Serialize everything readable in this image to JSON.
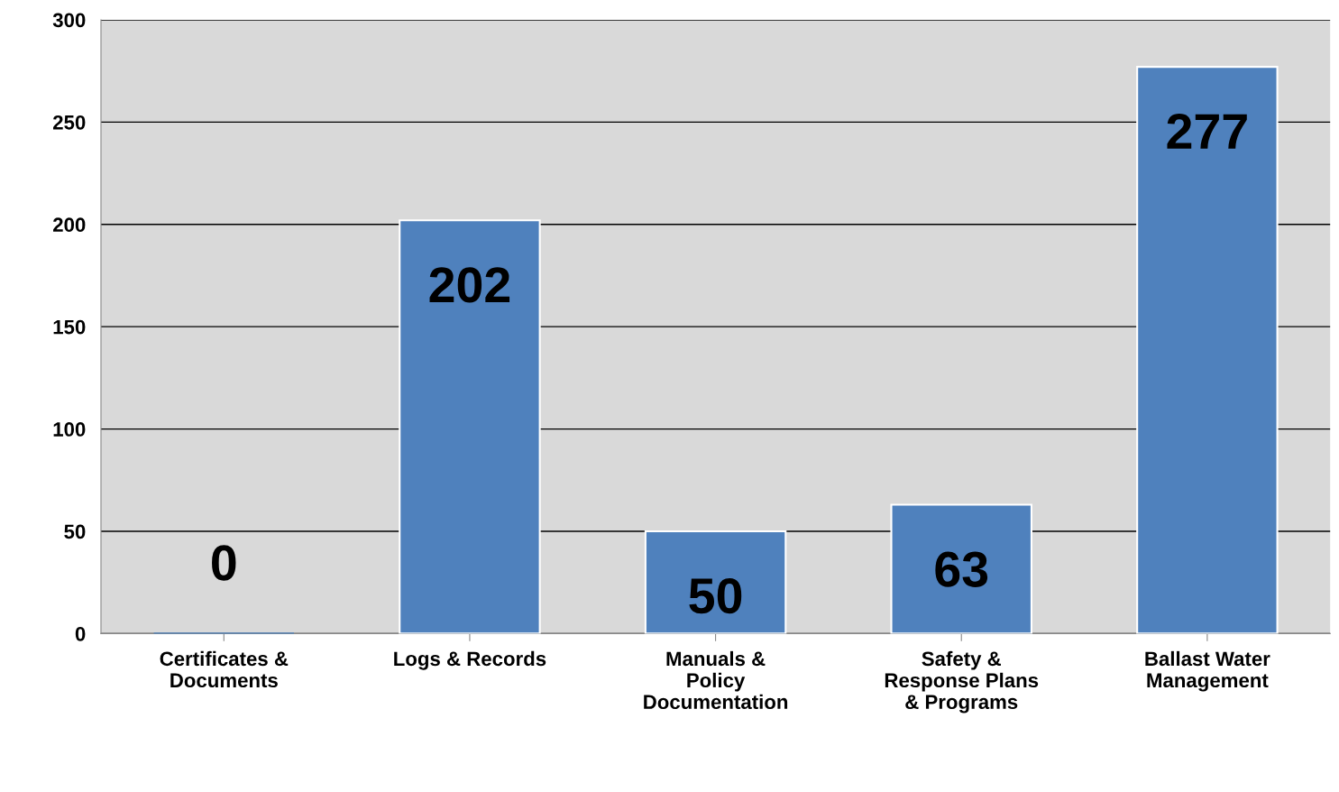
{
  "chart_data": {
    "type": "bar",
    "categories": [
      "Certificates &\nDocuments",
      "Logs & Records",
      "Manuals &\nPolicy\nDocumentation",
      "Safety &\nResponse Plans\n& Programs",
      "Ballast Water\nManagement"
    ],
    "values": [
      0,
      202,
      50,
      63,
      277
    ],
    "color": "#4f81bd",
    "ylim": [
      0,
      300
    ],
    "yticks": [
      0,
      50,
      100,
      150,
      200,
      250,
      300
    ],
    "grid": "y",
    "data_labels": true
  }
}
